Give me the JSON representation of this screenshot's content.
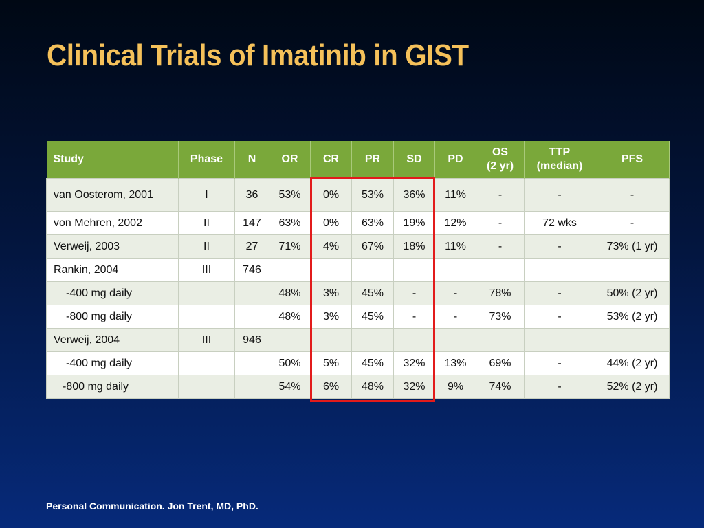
{
  "slide": {
    "title": "Clinical Trials of Imatinib in GIST",
    "footnote": "Personal Communication. Jon Trent, MD, PhD."
  },
  "table": {
    "headers": [
      "Study",
      "Phase",
      "N",
      "OR",
      "CR",
      "PR",
      "SD",
      "PD",
      "OS (2 yr)",
      "TTP (median)",
      "PFS"
    ],
    "header_lines": {
      "os": [
        "OS",
        "(2 yr)"
      ],
      "ttp": [
        "TTP",
        "(median)"
      ]
    },
    "rows": [
      [
        "van Oosterom, 2001",
        "I",
        "36",
        "53%",
        "0%",
        "53%",
        "36%",
        "11%",
        "-",
        "-",
        "-"
      ],
      [
        "von Mehren, 2002",
        "II",
        "147",
        "63%",
        "0%",
        "63%",
        "19%",
        "12%",
        "-",
        "72 wks",
        "-"
      ],
      [
        "Verweij, 2003",
        "II",
        "27",
        "71%",
        "4%",
        "67%",
        "18%",
        "11%",
        "-",
        "-",
        "73% (1 yr)"
      ],
      [
        "Rankin, 2004",
        "III",
        "746",
        "",
        "",
        "",
        "",
        "",
        "",
        "",
        ""
      ],
      [
        "-400 mg daily",
        "",
        "",
        "48%",
        "3%",
        "45%",
        "-",
        "-",
        "78%",
        "-",
        "50% (2 yr)"
      ],
      [
        "-800 mg daily",
        "",
        "",
        "48%",
        "3%",
        "45%",
        "-",
        "-",
        "73%",
        "-",
        "53% (2 yr)"
      ],
      [
        "Verweij, 2004",
        "III",
        "946",
        "",
        "",
        "",
        "",
        "",
        "",
        "",
        ""
      ],
      [
        "-400 mg daily",
        "",
        "",
        "50%",
        "5%",
        "45%",
        "32%",
        "13%",
        "69%",
        "-",
        "44% (2 yr)"
      ],
      [
        "-800 mg daily",
        "",
        "",
        "54%",
        "6%",
        "48%",
        "32%",
        "9%",
        "74%",
        "-",
        "52% (2 yr)"
      ]
    ],
    "highlight_color": "#e21b1b",
    "header_color": "#7aa83a"
  }
}
